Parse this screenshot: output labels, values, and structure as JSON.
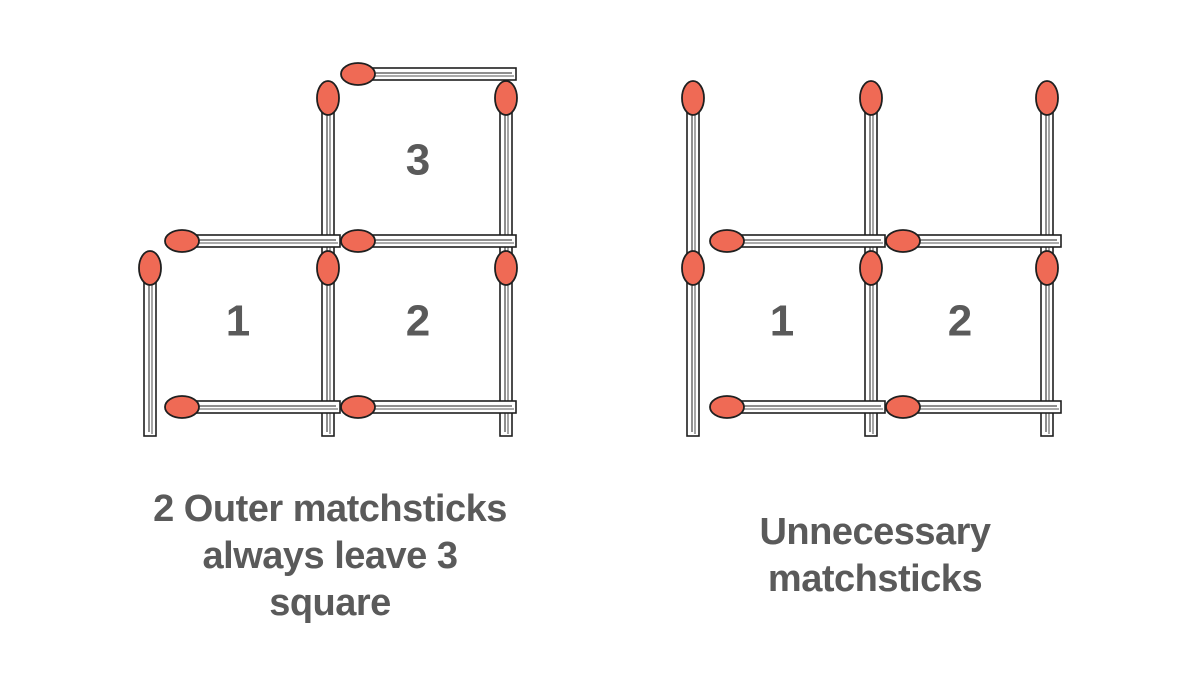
{
  "colors": {
    "match_head": "#ef6a55",
    "outline": "#1f1f1f",
    "text": "#5a5a5a"
  },
  "left_figure": {
    "square_labels": [
      "1",
      "2",
      "3"
    ],
    "caption_lines": [
      "2 Outer matchsticks",
      "always leave 3",
      "square"
    ]
  },
  "right_figure": {
    "square_labels": [
      "1",
      "2"
    ],
    "caption_lines": [
      "Unnecessary",
      "matchsticks"
    ]
  },
  "icons": {
    "matchstick": "matchstick-icon"
  }
}
